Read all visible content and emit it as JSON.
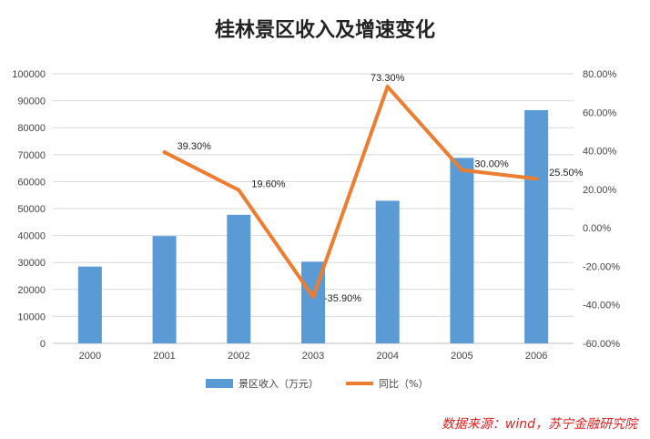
{
  "chart_data": {
    "type": "bar",
    "title": "桂林景区收入及增速变化",
    "categories": [
      "2000",
      "2001",
      "2002",
      "2003",
      "2004",
      "2005",
      "2006"
    ],
    "series": [
      {
        "name": "景区收入（万元）",
        "type": "bar",
        "axis": "left",
        "values": [
          28500,
          39800,
          47700,
          30300,
          52900,
          68800,
          86500
        ]
      },
      {
        "name": "同比（%）",
        "type": "line",
        "axis": "right",
        "values": [
          null,
          39.3,
          19.6,
          -35.9,
          73.3,
          30.0,
          25.5
        ],
        "labels": [
          "",
          "39.30%",
          "19.60%",
          "-35.90%",
          "73.30%",
          "30.00%",
          "25.50%"
        ]
      }
    ],
    "y_left": {
      "range": [
        0,
        100000
      ],
      "ticks": [
        "100000",
        "90000",
        "80000",
        "70000",
        "60000",
        "50000",
        "40000",
        "30000",
        "20000",
        "10000",
        "0"
      ]
    },
    "y_right": {
      "range": [
        -60,
        80
      ],
      "ticks": [
        "80.00%",
        "60.00%",
        "40.00%",
        "20.00%",
        "0.00%",
        "-20.00%",
        "-40.00%",
        "-60.00%"
      ]
    },
    "grid": true,
    "legend_position": "bottom",
    "colors": {
      "bar": "#5B9BD5",
      "line": "#ED7D31",
      "source": "#e02020"
    }
  },
  "source_note": "数据来源：wind，苏宁金融研究院"
}
